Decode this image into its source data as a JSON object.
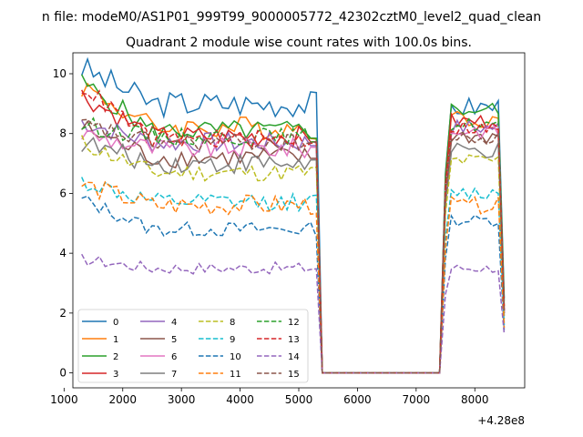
{
  "figure": {
    "suptitle": "n file: modeM0/AS1P01_999T99_9000005772_42302cztM0_level2_quad_clean",
    "title": "Quadrant 2 module wise count rates with 100.0s bins."
  },
  "chart_data": {
    "type": "line",
    "title": "Quadrant 2 module wise count rates with 100.0s bins.",
    "xlabel": "",
    "ylabel": "",
    "x_offset_label": "+4.28e8",
    "xlim": [
      1150,
      8850
    ],
    "ylim": [
      -0.5,
      10.7
    ],
    "xticks": [
      1000,
      2000,
      3000,
      4000,
      5000,
      6000,
      7000,
      8000
    ],
    "yticks": [
      0,
      2,
      4,
      6,
      8,
      10
    ],
    "grid": false,
    "legend": {
      "placement": "lower-left",
      "ncol": 4
    },
    "gaps": [
      {
        "from": 5400,
        "to": 7500,
        "value": 0
      }
    ],
    "segments": [
      {
        "x_start": 1300,
        "x_end": 5300,
        "step": 100
      },
      {
        "x_start": 7600,
        "x_end": 8400,
        "step": 100
      }
    ],
    "series": [
      {
        "name": "0",
        "color": "#1f77b4",
        "dash": "solid",
        "level": 9.0,
        "noise": 0.45,
        "start": 10.2,
        "seg2": 8.9,
        "end": 2.5
      },
      {
        "name": "1",
        "color": "#ff7f0e",
        "dash": "solid",
        "level": 8.2,
        "noise": 0.4,
        "start": 9.6,
        "seg2": 8.5,
        "end": 2.2
      },
      {
        "name": "2",
        "color": "#2ca02c",
        "dash": "solid",
        "level": 8.1,
        "noise": 0.35,
        "start": 9.7,
        "seg2": 8.8,
        "end": 2.4
      },
      {
        "name": "3",
        "color": "#d62728",
        "dash": "solid",
        "level": 7.9,
        "noise": 0.35,
        "start": 9.3,
        "seg2": 8.4,
        "end": 2.1
      },
      {
        "name": "4",
        "color": "#9467bd",
        "dash": "solid",
        "level": 7.7,
        "noise": 0.35,
        "start": 8.4,
        "seg2": 8.2,
        "end": 2.0
      },
      {
        "name": "5",
        "color": "#8c564b",
        "dash": "solid",
        "level": 7.2,
        "noise": 0.35,
        "start": 8.2,
        "seg2": 7.9,
        "end": 2.0
      },
      {
        "name": "6",
        "color": "#e377c2",
        "dash": "solid",
        "level": 7.5,
        "noise": 0.35,
        "start": 8.0,
        "seg2": 8.1,
        "end": 2.0
      },
      {
        "name": "7",
        "color": "#7f7f7f",
        "dash": "solid",
        "level": 7.0,
        "noise": 0.35,
        "start": 7.7,
        "seg2": 7.4,
        "end": 1.9
      },
      {
        "name": "8",
        "color": "#bcbd22",
        "dash": "dashed",
        "level": 6.7,
        "noise": 0.3,
        "start": 7.7,
        "seg2": 7.1,
        "end": 1.8
      },
      {
        "name": "9",
        "color": "#17becf",
        "dash": "dashed",
        "level": 5.7,
        "noise": 0.3,
        "start": 6.4,
        "seg2": 6.0,
        "end": 1.6
      },
      {
        "name": "10",
        "color": "#1f77b4",
        "dash": "dashed",
        "level": 4.8,
        "noise": 0.25,
        "start": 5.8,
        "seg2": 5.1,
        "end": 1.4
      },
      {
        "name": "11",
        "color": "#ff7f0e",
        "dash": "dashed",
        "level": 5.6,
        "noise": 0.35,
        "start": 6.3,
        "seg2": 5.6,
        "end": 1.5
      },
      {
        "name": "12",
        "color": "#2ca02c",
        "dash": "dashed",
        "level": 7.9,
        "noise": 0.3,
        "start": 8.3,
        "seg2": 8.3,
        "end": 2.2
      },
      {
        "name": "13",
        "color": "#d62728",
        "dash": "dashed",
        "level": 7.8,
        "noise": 0.3,
        "start": 9.6,
        "seg2": 8.2,
        "end": 2.1
      },
      {
        "name": "14",
        "color": "#9467bd",
        "dash": "dashed",
        "level": 3.5,
        "noise": 0.2,
        "start": 3.8,
        "seg2": 3.5,
        "end": 1.3
      },
      {
        "name": "15",
        "color": "#8c564b",
        "dash": "dashed",
        "level": 7.7,
        "noise": 0.3,
        "start": 8.3,
        "seg2": 7.8,
        "end": 2.0
      }
    ]
  }
}
